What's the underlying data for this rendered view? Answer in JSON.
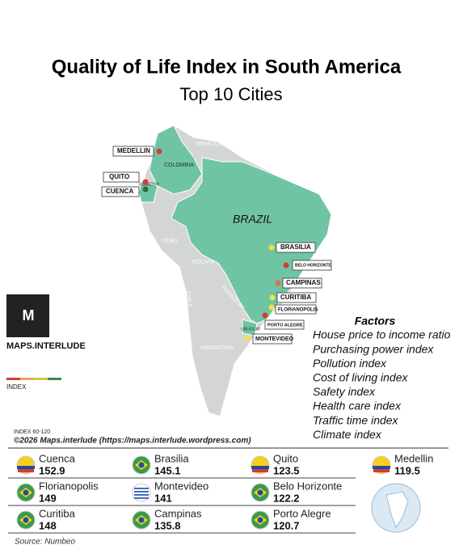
{
  "header": {
    "title": "Quality of Life Index in South America",
    "subtitle": "Top 10 Cities"
  },
  "map": {
    "countries": [
      "VENEZUELA",
      "COLOMBIA",
      "ECUADOR",
      "BRAZIL",
      "PERU",
      "BOLIVIA",
      "CHILE",
      "PARAGUAY",
      "URUGUAY",
      "ARGENTINA"
    ],
    "cities": [
      "MEDELLIN",
      "QUITO",
      "CUENCA",
      "BRASILIA",
      "BELO HORIZONTE",
      "CAMPINAS",
      "CURITIBA",
      "FLORIANOPOLIS",
      "PORTO ALEGRE",
      "MONTEVIDEO"
    ]
  },
  "brand": "MAPS.INTERLUDE",
  "legend": {
    "label": "INDEX",
    "range": "INDEX 60-120"
  },
  "copyright": "©2026 Maps.interlude (https://maps.interlude.wordpress.com)",
  "factors": {
    "title": "Factors",
    "items": [
      "House price to income ratio",
      "Purchasing power index",
      "Pollution index",
      "Cost of living index",
      "Safety index",
      "Health care index",
      "Traffic time index",
      "Climate index"
    ]
  },
  "table": {
    "rows": [
      {
        "city": "Cuenca",
        "value": 152.9
      },
      {
        "city": "Brasilia",
        "value": 145.1
      },
      {
        "city": "Quito",
        "value": 123.5
      },
      {
        "city": "Medellin",
        "value": 119.5
      },
      {
        "city": "Florianopolis",
        "value": 149
      },
      {
        "city": "Montevideo",
        "value": 141
      },
      {
        "city": "Belo Horizonte",
        "value": 122.2
      },
      {
        "city": "Curitiba",
        "value": 148
      },
      {
        "city": "Campinas",
        "value": 135.8
      },
      {
        "city": "Porto Alegre",
        "value": 120.7
      }
    ]
  },
  "source": "Source: Numbeo"
}
